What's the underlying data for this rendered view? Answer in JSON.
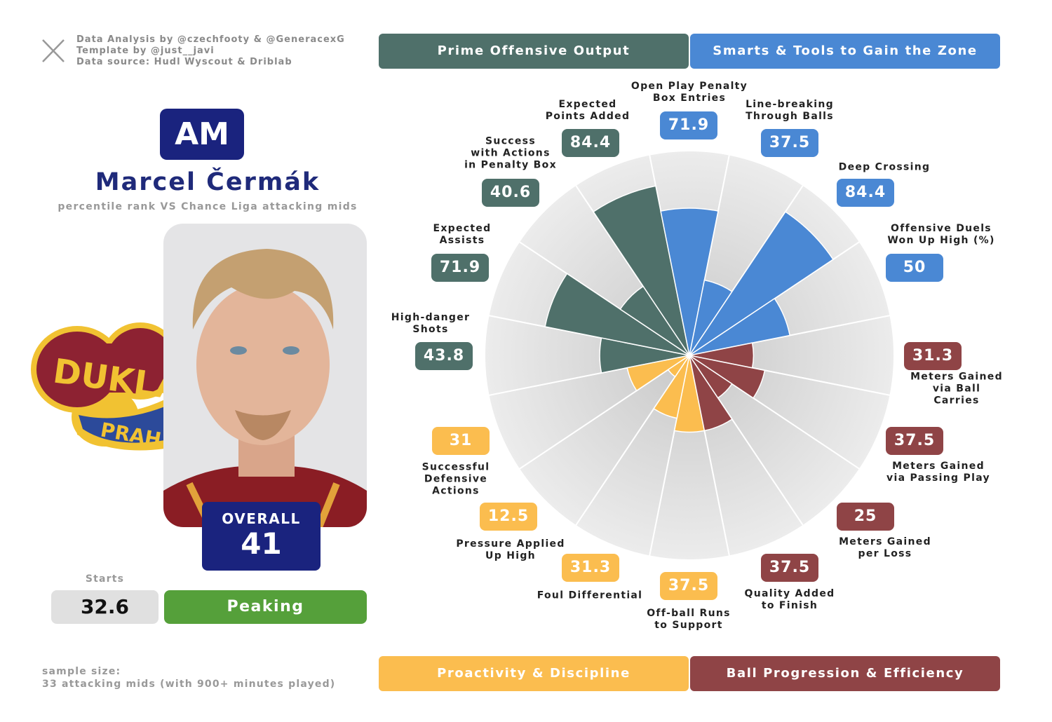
{
  "credits": [
    "Data Analysis by @czechfooty & @GeneracexG",
    "Template by @just__javi",
    "Data source: Hudl Wyscout & Driblab"
  ],
  "player": {
    "position": "AM",
    "name": "Marcel Čermák",
    "subtitle": "percentile rank VS Chance Liga attacking mids",
    "overall_label": "OVERALL",
    "overall": 41,
    "starts_label": "Starts",
    "starts": 32.6,
    "form": "Peaking"
  },
  "logo": {
    "top": "DUKLA",
    "bottom": "PRAHA"
  },
  "sample": [
    "sample size:",
    "33 attacking mids (with 900+ minutes played)"
  ],
  "chart_data": {
    "type": "pizza",
    "ylim": [
      0,
      100
    ],
    "series": [
      {
        "name": "Prime Offensive Output",
        "color": "#4f706a",
        "categories": [
          "High-danger\nShots",
          "Expected\nAssists",
          "Success\nwith Actions\nin Penalty Box",
          "Expected\nPoints Added"
        ],
        "values": [
          43.8,
          71.9,
          40.6,
          84.4
        ]
      },
      {
        "name": "Smarts & Tools to Gain the Zone",
        "color": "#4a88d4",
        "categories": [
          "Open Play Penalty\nBox Entries",
          "Line-breaking\nThrough Balls",
          "Deep Crossing",
          "Offensive Duels\nWon Up High (%)"
        ],
        "values": [
          71.9,
          37.5,
          84.4,
          50
        ]
      },
      {
        "name": "Proactivity & Discipline",
        "color": "#fbbd4f",
        "categories": [
          "Off-ball Runs\nto Support",
          "Foul Differential",
          "Pressure Applied\nUp High",
          "Successful\nDefensive\nActions"
        ],
        "values": [
          37.5,
          31.3,
          12.5,
          31
        ]
      },
      {
        "name": "Ball Progression & Efficiency",
        "color": "#8f4446",
        "categories": [
          "Meters Gained\nvia Ball Carries",
          "Meters Gained\nvia Passing Play",
          "Meters Gained\nper Loss",
          "Quality Added\nto Finish"
        ],
        "values": [
          31.3,
          37.5,
          25,
          37.5
        ]
      }
    ]
  }
}
